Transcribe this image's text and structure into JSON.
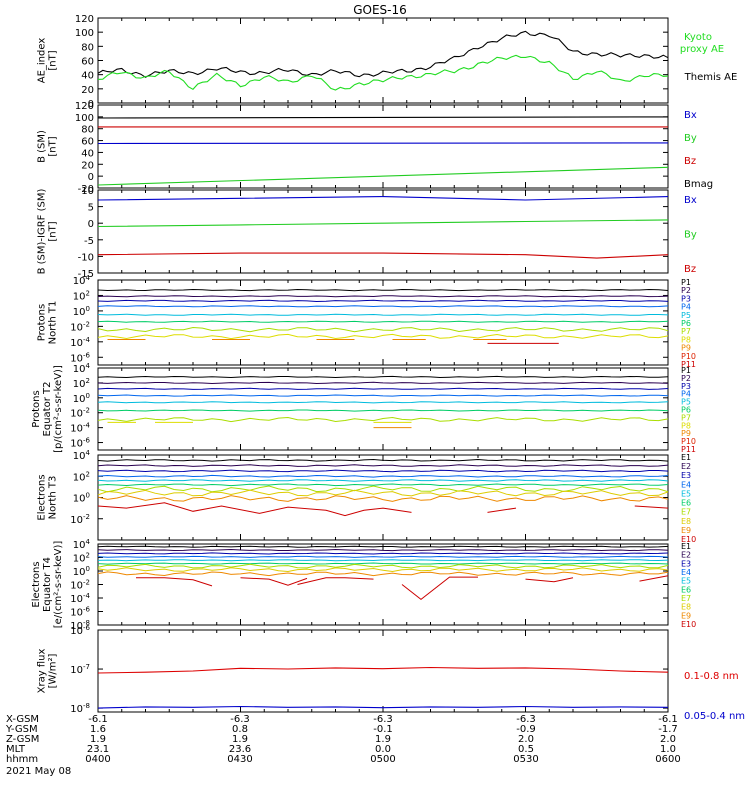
{
  "title": "GOES-16",
  "footer": {
    "row_labels": [
      "X-GSM",
      "Y-GSM",
      "Z-GSM",
      "MLT",
      "hhmm"
    ],
    "columns": [
      [
        "-6.1",
        "1.6",
        "1.9",
        "23.1",
        "0400"
      ],
      [
        "-6.3",
        "0.8",
        "1.9",
        "23.6",
        "0430"
      ],
      [
        "-6.3",
        "-0.1",
        "1.9",
        "0.0",
        "0500"
      ],
      [
        "-6.3",
        "-0.9",
        "2.0",
        "0.5",
        "0530"
      ],
      [
        "-6.1",
        "-1.7",
        "2.0",
        "1.0",
        "0600"
      ]
    ],
    "date": "2021 May 08"
  },
  "colors": {
    "black": "#000000",
    "green": "#22dd22",
    "blue": "#0000cc",
    "red": "#dd0000",
    "Bx": "#0000cc",
    "By": "#22cc22",
    "Bz": "#cc0000",
    "Bmag": "#000000"
  },
  "chart_data": [
    {
      "type": "line",
      "ylabel": [
        "AE_index",
        "[nT]"
      ],
      "ylim": [
        0,
        120
      ],
      "yticks": [
        "0",
        "20",
        "40",
        "60",
        "80",
        "100",
        "120"
      ],
      "x_range": [
        "0400",
        "0600"
      ],
      "legend": [
        {
          "label": "Kyoto",
          "color": "#22dd22"
        },
        {
          "label": "proxy AE",
          "color": "#22dd22"
        },
        {
          "label": "Themis AE",
          "color": "#000000"
        }
      ],
      "series": [
        {
          "name": "Themis AE",
          "color": "#000000",
          "x": [
            0,
            5,
            10,
            15,
            20,
            25,
            30,
            35,
            40,
            45,
            50,
            55,
            60,
            65,
            70,
            75,
            80,
            85,
            90,
            95,
            100,
            105,
            110,
            115,
            120
          ],
          "y": [
            42,
            46,
            40,
            44,
            43,
            48,
            44,
            43,
            46,
            41,
            44,
            40,
            42,
            45,
            52,
            62,
            80,
            90,
            100,
            96,
            72,
            70,
            66,
            68,
            64
          ]
        },
        {
          "name": "Kyoto proxy AE",
          "color": "#22dd22",
          "x": [
            0,
            5,
            10,
            15,
            20,
            25,
            30,
            35,
            40,
            45,
            50,
            55,
            60,
            65,
            70,
            75,
            80,
            85,
            90,
            95,
            100,
            105,
            110,
            115,
            120
          ],
          "y": [
            32,
            45,
            35,
            44,
            22,
            38,
            26,
            36,
            30,
            40,
            17,
            28,
            31,
            38,
            40,
            45,
            55,
            62,
            68,
            55,
            35,
            45,
            30,
            40,
            38
          ]
        }
      ]
    },
    {
      "type": "line",
      "ylabel": [
        "B (SM)",
        "[nT]"
      ],
      "ylim": [
        -20,
        120
      ],
      "yticks": [
        "-20",
        "0",
        "20",
        "40",
        "60",
        "80",
        "100",
        "120"
      ],
      "legend": [
        {
          "label": "Bx",
          "color": "#0000cc"
        },
        {
          "label": "By",
          "color": "#22cc22"
        },
        {
          "label": "Bz",
          "color": "#cc0000"
        },
        {
          "label": "Bmag",
          "color": "#000000"
        }
      ],
      "series": [
        {
          "name": "Bmag",
          "color": "#000000",
          "x": [
            0,
            120
          ],
          "y": [
            98,
            100
          ]
        },
        {
          "name": "Bz",
          "color": "#cc0000",
          "x": [
            0,
            120
          ],
          "y": [
            83,
            83
          ]
        },
        {
          "name": "Bx",
          "color": "#0000cc",
          "x": [
            0,
            120
          ],
          "y": [
            55,
            56
          ]
        },
        {
          "name": "By",
          "color": "#22cc22",
          "x": [
            0,
            120
          ],
          "y": [
            -15,
            15
          ]
        }
      ]
    },
    {
      "type": "line",
      "ylabel": [
        "B (SM)-IGRF (SM)",
        "[nT]"
      ],
      "ylim": [
        -15,
        10
      ],
      "yticks": [
        "-15",
        "-10",
        "-5",
        "0",
        "5",
        "10"
      ],
      "legend": [
        {
          "label": "Bx",
          "color": "#0000cc"
        },
        {
          "label": "By",
          "color": "#22cc22"
        },
        {
          "label": "Bz",
          "color": "#cc0000"
        }
      ],
      "series": [
        {
          "name": "Bx",
          "color": "#0000cc",
          "x": [
            0,
            30,
            60,
            90,
            120
          ],
          "y": [
            7,
            7.5,
            8,
            7,
            8
          ]
        },
        {
          "name": "By",
          "color": "#22cc22",
          "x": [
            0,
            30,
            60,
            90,
            120
          ],
          "y": [
            -1,
            -0.5,
            0,
            0.5,
            1
          ]
        },
        {
          "name": "Bz",
          "color": "#cc0000",
          "x": [
            0,
            30,
            60,
            90,
            105,
            120
          ],
          "y": [
            -9.5,
            -9,
            -9,
            -9.5,
            -10.5,
            -9.5
          ]
        }
      ]
    },
    {
      "type": "line",
      "ylabel": [
        "Protons",
        "North T1"
      ],
      "log": true,
      "ylim_exp": [
        -7,
        4
      ],
      "ytick_exps": [
        -6,
        -4,
        -2,
        0,
        2,
        4
      ],
      "channels": [
        {
          "label": "P1",
          "color": "#000000",
          "level": 2.7
        },
        {
          "label": "P2",
          "color": "#2a0050",
          "level": 1.9
        },
        {
          "label": "P3",
          "color": "#0000aa",
          "level": 1.3
        },
        {
          "label": "P4",
          "color": "#0066ee",
          "level": 0.6
        },
        {
          "label": "P5",
          "color": "#00bbdd",
          "level": -0.5
        },
        {
          "label": "P6",
          "color": "#00cc66",
          "level": -1.4
        },
        {
          "label": "P7",
          "color": "#aadd00",
          "level": -2.4
        },
        {
          "label": "P8",
          "color": "#dddd00",
          "level": -3.3
        },
        {
          "label": "P9",
          "color": "#ee8800",
          "level": null
        },
        {
          "label": "P10",
          "color": "#dd2200",
          "level": null
        },
        {
          "label": "P11",
          "color": "#cc0000",
          "level": null
        }
      ]
    },
    {
      "type": "line",
      "ylabel": [
        "Protons",
        "Equator T2",
        "[p/(cm²-s-sr-keV)]"
      ],
      "log": true,
      "ylim_exp": [
        -7,
        4
      ],
      "ytick_exps": [
        -6,
        -4,
        -2,
        0,
        2,
        4
      ],
      "channels": [
        {
          "label": "P1",
          "color": "#000000",
          "level": 2.8
        },
        {
          "label": "P2",
          "color": "#2a0050",
          "level": 2.0
        },
        {
          "label": "P3",
          "color": "#0000aa",
          "level": 1.2
        },
        {
          "label": "P4",
          "color": "#0066ee",
          "level": 0.3
        },
        {
          "label": "P5",
          "color": "#00bbdd",
          "level": -0.6
        },
        {
          "label": "P6",
          "color": "#00cc66",
          "level": -1.7
        },
        {
          "label": "P7",
          "color": "#aadd00",
          "level": -2.9
        },
        {
          "label": "P8",
          "color": "#dddd00",
          "level": null
        },
        {
          "label": "P9",
          "color": "#ee8800",
          "level": null
        },
        {
          "label": "P10",
          "color": "#dd2200",
          "level": null
        },
        {
          "label": "P11",
          "color": "#cc0000",
          "level": null
        }
      ]
    },
    {
      "type": "line",
      "ylabel": [
        "Electrons",
        "North T3"
      ],
      "log": true,
      "ylim_exp": [
        -4,
        4
      ],
      "ytick_exps": [
        -2,
        0,
        2,
        4
      ],
      "channels": [
        {
          "label": "E1",
          "color": "#000000",
          "level": 3.5
        },
        {
          "label": "E2",
          "color": "#2a0050",
          "level": 3.0
        },
        {
          "label": "E3",
          "color": "#0000aa",
          "level": 2.5
        },
        {
          "label": "E4",
          "color": "#0066ee",
          "level": 2.0
        },
        {
          "label": "E5",
          "color": "#00bbdd",
          "level": 1.6
        },
        {
          "label": "E6",
          "color": "#00cc66",
          "level": 1.2
        },
        {
          "label": "E7",
          "color": "#aadd00",
          "level": 0.8
        },
        {
          "label": "E8",
          "color": "#ddcc00",
          "level": 0.4
        },
        {
          "label": "E9",
          "color": "#ee8800",
          "level": -0.1
        },
        {
          "label": "E10",
          "color": "#cc0000",
          "level": null
        }
      ]
    },
    {
      "type": "line",
      "ylabel": [
        "Electrons",
        "Equator T4",
        "[e/(cm²-s-sr-keV)]"
      ],
      "log": true,
      "ylim_exp": [
        -8,
        4
      ],
      "ytick_exps": [
        -8,
        -6,
        -4,
        -2,
        0,
        2,
        4
      ],
      "channels": [
        {
          "label": "E1",
          "color": "#000000",
          "level": 3.6
        },
        {
          "label": "E2",
          "color": "#2a0050",
          "level": 3.1
        },
        {
          "label": "E3",
          "color": "#0000aa",
          "level": 2.6
        },
        {
          "label": "E4",
          "color": "#0066ee",
          "level": 2.1
        },
        {
          "label": "E5",
          "color": "#00bbdd",
          "level": 1.6
        },
        {
          "label": "E6",
          "color": "#00cc66",
          "level": 1.1
        },
        {
          "label": "E7",
          "color": "#aadd00",
          "level": 0.7
        },
        {
          "label": "E8",
          "color": "#ddcc00",
          "level": 0.2
        },
        {
          "label": "E9",
          "color": "#ee8800",
          "level": -0.4
        },
        {
          "label": "E10",
          "color": "#cc0000",
          "level": null
        }
      ]
    },
    {
      "type": "line",
      "ylabel": [
        "Xray flux",
        "[W/m²]"
      ],
      "log": true,
      "ylim_exp": [
        -8.1,
        -6
      ],
      "ytick_exps": [
        -8,
        -7,
        -6
      ],
      "legend": [
        {
          "label": "0.1-0.8 nm",
          "color": "#dd0000"
        },
        {
          "label": "0.05-0.4 nm",
          "color": "#0000cc"
        }
      ],
      "series": [
        {
          "name": "0.1-0.8 nm",
          "color": "#dd0000",
          "x": [
            0,
            10,
            20,
            30,
            40,
            50,
            60,
            70,
            80,
            90,
            100,
            110,
            120
          ],
          "y": [
            -7.1,
            -7.08,
            -7.05,
            -6.98,
            -7.0,
            -6.97,
            -6.99,
            -6.96,
            -6.98,
            -6.97,
            -7.0,
            -7.05,
            -7.08
          ]
        },
        {
          "name": "0.05-0.4 nm",
          "color": "#0000cc",
          "x": [
            0,
            10,
            20,
            30,
            40,
            50,
            60,
            70,
            80,
            90,
            100,
            110,
            120
          ],
          "y": [
            -8.0,
            -7.97,
            -7.98,
            -7.96,
            -7.98,
            -7.97,
            -7.99,
            -7.97,
            -7.98,
            -7.96,
            -7.98,
            -7.97,
            -7.98
          ]
        }
      ]
    }
  ]
}
